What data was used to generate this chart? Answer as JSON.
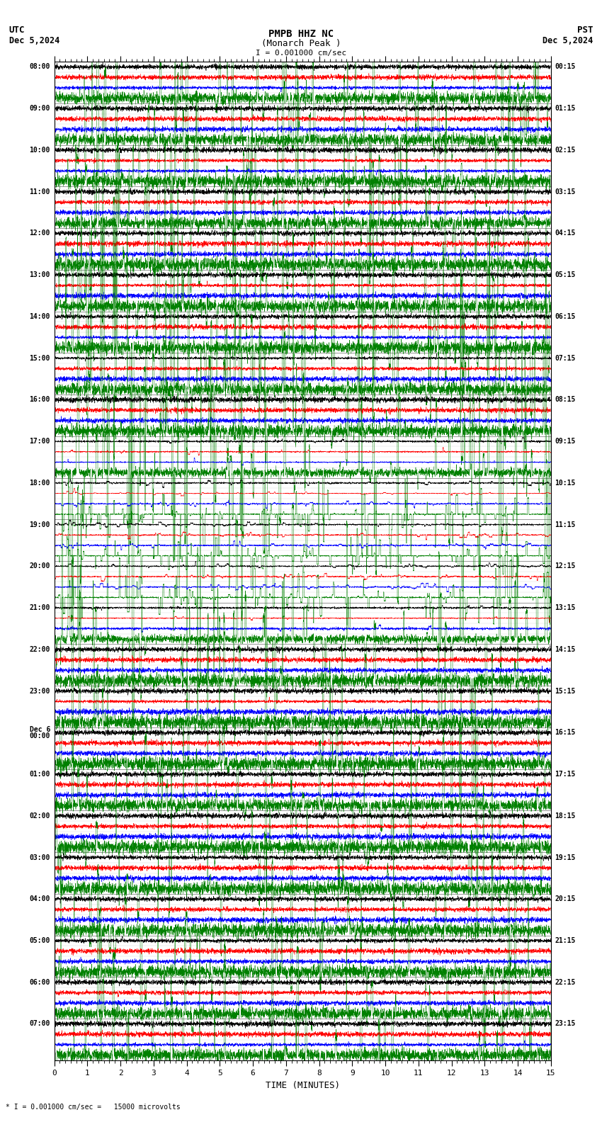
{
  "title_line1": "PMPB HHZ NC",
  "title_line2": "(Monarch Peak )",
  "scale_label": "I = 0.001000 cm/sec",
  "bottom_label": "* I = 0.001000 cm/sec =   15000 microvolts",
  "xlabel": "TIME (MINUTES)",
  "utc_label": "UTC",
  "utc_date": "Dec 5,2024",
  "pst_label": "PST",
  "pst_date": "Dec 5,2024",
  "left_times_utc": [
    "08:00",
    "",
    "",
    "",
    "09:00",
    "",
    "",
    "",
    "10:00",
    "",
    "",
    "",
    "11:00",
    "",
    "",
    "",
    "12:00",
    "",
    "",
    "",
    "13:00",
    "",
    "",
    "",
    "14:00",
    "",
    "",
    "",
    "15:00",
    "",
    "",
    "",
    "16:00",
    "",
    "",
    "",
    "17:00",
    "",
    "",
    "",
    "18:00",
    "",
    "",
    "",
    "19:00",
    "",
    "",
    "",
    "20:00",
    "",
    "",
    "",
    "21:00",
    "",
    "",
    "",
    "22:00",
    "",
    "",
    "",
    "23:00",
    "",
    "",
    "",
    "Dec 6\n00:00",
    "",
    "",
    "",
    "01:00",
    "",
    "",
    "",
    "02:00",
    "",
    "",
    "",
    "03:00",
    "",
    "",
    "",
    "04:00",
    "",
    "",
    "",
    "05:00",
    "",
    "",
    "",
    "06:00",
    "",
    "",
    "",
    "07:00",
    "",
    "",
    ""
  ],
  "right_times_pst": [
    "00:15",
    "",
    "",
    "",
    "01:15",
    "",
    "",
    "",
    "02:15",
    "",
    "",
    "",
    "03:15",
    "",
    "",
    "",
    "04:15",
    "",
    "",
    "",
    "05:15",
    "",
    "",
    "",
    "06:15",
    "",
    "",
    "",
    "07:15",
    "",
    "",
    "",
    "08:15",
    "",
    "",
    "",
    "09:15",
    "",
    "",
    "",
    "10:15",
    "",
    "",
    "",
    "11:15",
    "",
    "",
    "",
    "12:15",
    "",
    "",
    "",
    "13:15",
    "",
    "",
    "",
    "14:15",
    "",
    "",
    "",
    "15:15",
    "",
    "",
    "",
    "16:15",
    "",
    "",
    "",
    "17:15",
    "",
    "",
    "",
    "18:15",
    "",
    "",
    "",
    "19:15",
    "",
    "",
    "",
    "20:15",
    "",
    "",
    "",
    "21:15",
    "",
    "",
    "",
    "22:15",
    "",
    "",
    "",
    "23:15",
    "",
    "",
    ""
  ],
  "num_traces": 96,
  "xmin": 0,
  "xmax": 15,
  "x_ticks": [
    0,
    1,
    2,
    3,
    4,
    5,
    6,
    7,
    8,
    9,
    10,
    11,
    12,
    13,
    14,
    15
  ],
  "bg_color": "#ffffff",
  "trace_colors": [
    "black",
    "red",
    "blue",
    "green"
  ],
  "figwidth": 8.5,
  "figheight": 15.84,
  "dpi": 100
}
